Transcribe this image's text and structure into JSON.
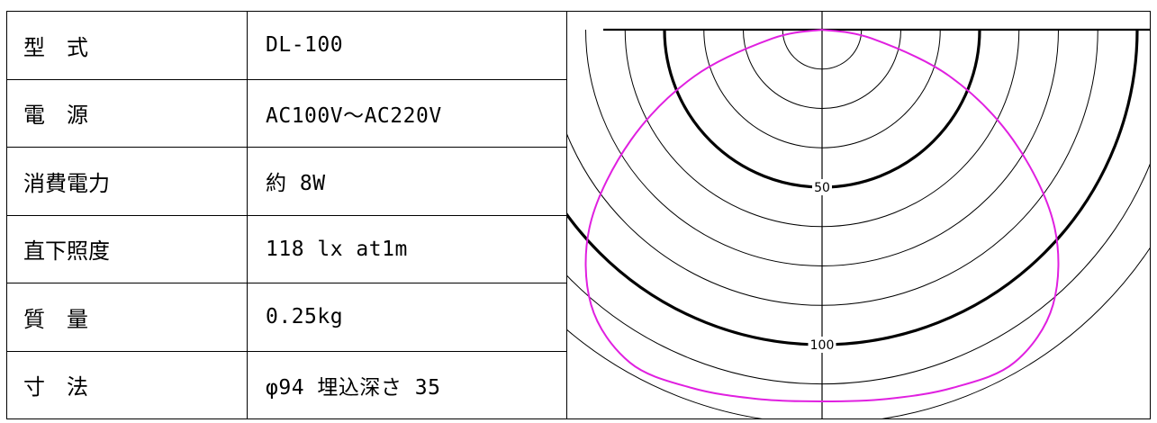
{
  "spec_table": {
    "rows": [
      {
        "label": "型　式",
        "value": "DL-100"
      },
      {
        "label": "電　源",
        "value": "AC100V～AC220V"
      },
      {
        "label": "消費電力",
        "value": "約 8W"
      },
      {
        "label": "直下照度",
        "value": "118 lx at1m"
      },
      {
        "label": "質　量",
        "value": "0.25kg"
      },
      {
        "label": "寸　法",
        "value": "φ94 埋込深さ 35"
      }
    ]
  },
  "chart_data": {
    "type": "polar",
    "title": "",
    "xlabel": "",
    "ylabel": "",
    "radial_labels": [
      "50",
      "100"
    ],
    "radial_max": 125,
    "radial_step": 12.5,
    "bold_rings": [
      50,
      100
    ],
    "curve_color": "#e020e0",
    "grid_color": "#000000",
    "series": [
      {
        "angles_deg": [
          0,
          10,
          20,
          30,
          40,
          50,
          60,
          70,
          80,
          90
        ],
        "values": [
          118,
          119,
          121,
          122,
          114,
          96,
          70,
          43,
          16,
          0
        ]
      }
    ]
  }
}
